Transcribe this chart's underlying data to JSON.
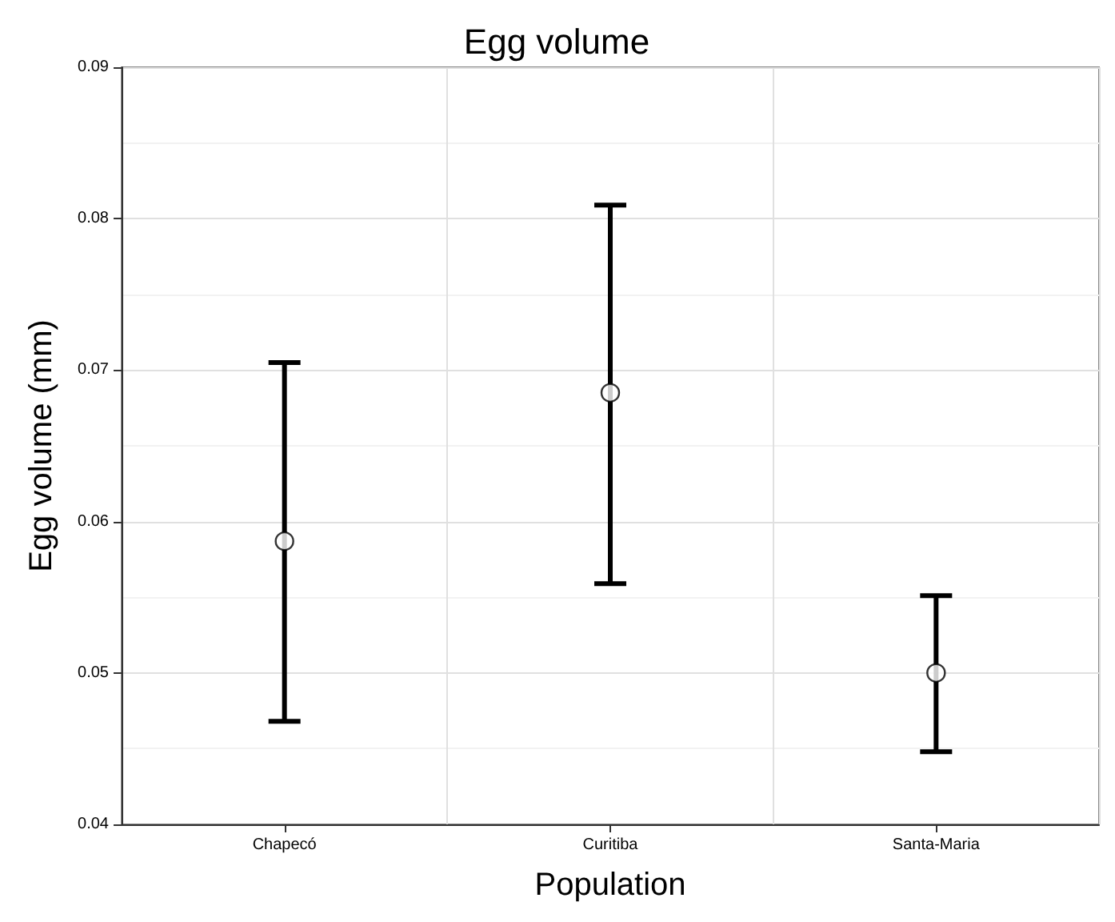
{
  "chart_data": {
    "type": "scatter",
    "title": "Egg volume",
    "xlabel": "Population",
    "ylabel": "Egg volume (mm)",
    "categories": [
      "Chapecó",
      "Curitiba",
      "Santa-Maria"
    ],
    "values": [
      0.0587,
      0.0685,
      0.05
    ],
    "errors": [
      [
        0.0468,
        0.0705
      ],
      [
        0.0559,
        0.0809
      ],
      [
        0.0448,
        0.0551
      ]
    ],
    "color": "#000000",
    "marker": "circle",
    "ylim": [
      0.04,
      0.09
    ],
    "yticks": [
      0.04,
      0.05,
      0.06,
      0.07,
      0.08,
      0.09
    ],
    "grid": true
  }
}
